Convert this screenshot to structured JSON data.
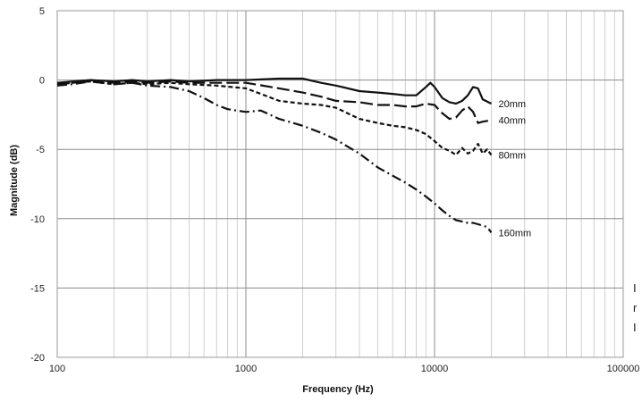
{
  "chart_data": {
    "type": "line",
    "title": "",
    "xlabel": "Frequency (Hz)",
    "ylabel": "Magnitude (dB)",
    "xscale": "log",
    "xlim": [
      100,
      100000
    ],
    "ylim": [
      -20,
      5
    ],
    "x_ticks": [
      "100",
      "1000",
      "10000",
      "100000"
    ],
    "y_ticks": [
      "5",
      "0",
      "-5",
      "-10",
      "-15",
      "-20"
    ],
    "grid": true,
    "legend": "none (series labelled at right end of each curve)",
    "colors": {
      "lines": "#111111",
      "grid_major": "#8c8c8c",
      "grid_minor": "#cfcfcf",
      "plot_border": "#9a9a9a"
    },
    "series": [
      {
        "name": "20mm",
        "style": "solid",
        "x": [
          100,
          120,
          150,
          200,
          250,
          300,
          400,
          500,
          700,
          1000,
          1500,
          2000,
          2500,
          3000,
          4000,
          5000,
          6000,
          7000,
          8000,
          9000,
          9500,
          10000,
          11000,
          12000,
          13000,
          14000,
          15000,
          16000,
          17000,
          18000,
          20000
        ],
        "y": [
          -0.2,
          -0.1,
          0.0,
          -0.1,
          0.0,
          -0.1,
          0.0,
          -0.1,
          0.0,
          0.0,
          0.1,
          0.1,
          -0.2,
          -0.4,
          -0.8,
          -0.9,
          -1.0,
          -1.1,
          -1.1,
          -0.5,
          -0.2,
          -0.5,
          -1.3,
          -1.6,
          -1.7,
          -1.5,
          -1.1,
          -0.5,
          -0.6,
          -1.4,
          -1.7
        ]
      },
      {
        "name": "40mm",
        "style": "dashed",
        "x": [
          100,
          120,
          150,
          200,
          250,
          300,
          400,
          500,
          700,
          1000,
          1500,
          2000,
          2500,
          3000,
          4000,
          5000,
          6000,
          7000,
          8000,
          9000,
          10000,
          11000,
          12000,
          13000,
          14000,
          15000,
          16000,
          17000,
          18000,
          20000
        ],
        "y": [
          -0.3,
          -0.2,
          0.0,
          -0.2,
          -0.1,
          -0.2,
          -0.1,
          -0.2,
          -0.2,
          -0.2,
          -0.6,
          -0.9,
          -1.2,
          -1.5,
          -1.6,
          -1.8,
          -1.8,
          -1.9,
          -1.9,
          -1.7,
          -1.8,
          -2.4,
          -2.8,
          -2.7,
          -2.2,
          -1.9,
          -2.3,
          -3.1,
          -3.0,
          -2.9
        ]
      },
      {
        "name": "80mm",
        "style": "short-dashed",
        "x": [
          100,
          120,
          150,
          200,
          250,
          300,
          400,
          500,
          700,
          1000,
          1200,
          1500,
          2000,
          2500,
          3000,
          4000,
          5000,
          6000,
          7000,
          8000,
          9000,
          10000,
          11000,
          12000,
          13000,
          14000,
          15000,
          16000,
          17000,
          18000,
          19000,
          20000
        ],
        "y": [
          -0.3,
          -0.2,
          -0.1,
          -0.3,
          -0.2,
          -0.3,
          -0.2,
          -0.3,
          -0.4,
          -0.6,
          -1.0,
          -1.5,
          -1.7,
          -1.8,
          -2.0,
          -2.8,
          -3.1,
          -3.3,
          -3.4,
          -3.6,
          -3.9,
          -4.4,
          -4.9,
          -5.1,
          -5.4,
          -4.9,
          -5.3,
          -5.1,
          -4.6,
          -5.3,
          -5.0,
          -5.4
        ]
      },
      {
        "name": "160mm",
        "style": "dash-dot",
        "x": [
          100,
          120,
          150,
          200,
          250,
          300,
          400,
          500,
          600,
          700,
          800,
          1000,
          1200,
          1500,
          2000,
          2500,
          3000,
          4000,
          5000,
          6000,
          7000,
          8000,
          9000,
          10000,
          11000,
          12000,
          13000,
          14000,
          15000,
          16000,
          17000,
          18000,
          19000,
          20000
        ],
        "y": [
          -0.4,
          -0.3,
          -0.1,
          -0.3,
          -0.2,
          -0.4,
          -0.5,
          -0.8,
          -1.3,
          -1.8,
          -2.1,
          -2.3,
          -2.2,
          -2.8,
          -3.3,
          -3.8,
          -4.3,
          -5.3,
          -6.3,
          -6.9,
          -7.4,
          -7.9,
          -8.4,
          -8.9,
          -9.4,
          -9.8,
          -10.1,
          -10.2,
          -10.3,
          -10.3,
          -10.4,
          -10.5,
          -10.6,
          -11.0
        ]
      }
    ],
    "annotations": [
      {
        "series": "20mm",
        "text": "20mm"
      },
      {
        "series": "40mm",
        "text": "40mm"
      },
      {
        "series": "80mm",
        "text": "80mm"
      },
      {
        "series": "160mm",
        "text": "160mm"
      }
    ]
  },
  "edge_text": [
    "I",
    "r",
    "I"
  ]
}
